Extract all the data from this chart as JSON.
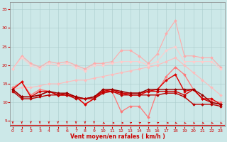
{
  "xlabel": "Vent moyen/en rafales ( km/h )",
  "bg_color": "#cce8e8",
  "grid_color": "#aacccc",
  "x_ticks": [
    0,
    1,
    2,
    3,
    4,
    5,
    6,
    7,
    8,
    9,
    10,
    11,
    12,
    13,
    14,
    15,
    16,
    17,
    18,
    19,
    20,
    21,
    22,
    23
  ],
  "y_ticks": [
    5,
    10,
    15,
    20,
    25,
    30,
    35
  ],
  "ylim": [
    3.5,
    37
  ],
  "xlim": [
    -0.3,
    23.5
  ],
  "series": [
    {
      "color": "#ffaaaa",
      "lw": 0.8,
      "marker": "D",
      "ms": 1.8,
      "data": [
        [
          0,
          19
        ],
        [
          1,
          22.5
        ],
        [
          2,
          20.5
        ],
        [
          3,
          19.5
        ],
        [
          4,
          21
        ],
        [
          5,
          20.5
        ],
        [
          6,
          21
        ],
        [
          7,
          20
        ],
        [
          8,
          19
        ],
        [
          9,
          20.5
        ],
        [
          10,
          20.5
        ],
        [
          11,
          21
        ],
        [
          12,
          24
        ],
        [
          13,
          24
        ],
        [
          14,
          22.5
        ],
        [
          15,
          20.5
        ],
        [
          16,
          23
        ],
        [
          17,
          28.5
        ],
        [
          18,
          32
        ],
        [
          19,
          22.5
        ],
        [
          20,
          22.5
        ],
        [
          21,
          22
        ],
        [
          22,
          22
        ],
        [
          23,
          19.5
        ]
      ]
    },
    {
      "color": "#ffbbbb",
      "lw": 0.8,
      "marker": "D",
      "ms": 1.8,
      "data": [
        [
          0,
          13.5
        ],
        [
          1,
          14
        ],
        [
          2,
          14
        ],
        [
          3,
          14.5
        ],
        [
          4,
          15
        ],
        [
          5,
          15
        ],
        [
          6,
          15.5
        ],
        [
          7,
          16
        ],
        [
          8,
          16
        ],
        [
          9,
          16.5
        ],
        [
          10,
          17
        ],
        [
          11,
          17.5
        ],
        [
          12,
          18
        ],
        [
          13,
          18.5
        ],
        [
          14,
          19
        ],
        [
          15,
          19.5
        ],
        [
          16,
          20
        ],
        [
          17,
          21
        ],
        [
          18,
          22
        ],
        [
          19,
          20
        ],
        [
          20,
          18
        ],
        [
          21,
          16
        ],
        [
          22,
          14
        ],
        [
          23,
          12
        ]
      ]
    },
    {
      "color": "#ffcccc",
      "lw": 0.8,
      "marker": "D",
      "ms": 1.8,
      "data": [
        [
          0,
          19
        ],
        [
          1,
          22
        ],
        [
          2,
          20
        ],
        [
          3,
          19
        ],
        [
          4,
          20.5
        ],
        [
          5,
          20
        ],
        [
          6,
          20.5
        ],
        [
          7,
          19.5
        ],
        [
          8,
          18.5
        ],
        [
          9,
          20
        ],
        [
          10,
          20
        ],
        [
          11,
          20.5
        ],
        [
          12,
          21
        ],
        [
          13,
          21
        ],
        [
          14,
          21
        ],
        [
          15,
          20
        ],
        [
          16,
          21
        ],
        [
          17,
          24
        ],
        [
          18,
          25
        ],
        [
          19,
          21
        ],
        [
          20,
          21
        ],
        [
          21,
          21
        ],
        [
          22,
          21
        ],
        [
          23,
          19
        ]
      ]
    },
    {
      "color": "#ff7777",
      "lw": 0.9,
      "marker": "D",
      "ms": 1.8,
      "data": [
        [
          0,
          14
        ],
        [
          1,
          15.5
        ],
        [
          2,
          12
        ],
        [
          3,
          13.5
        ],
        [
          4,
          13
        ],
        [
          5,
          12
        ],
        [
          6,
          12
        ],
        [
          7,
          11.5
        ],
        [
          8,
          9.5
        ],
        [
          9,
          11
        ],
        [
          10,
          13.5
        ],
        [
          11,
          13
        ],
        [
          12,
          7.5
        ],
        [
          13,
          9
        ],
        [
          14,
          9
        ],
        [
          15,
          6
        ],
        [
          16,
          13
        ],
        [
          17,
          17
        ],
        [
          18,
          19.5
        ],
        [
          19,
          17.5
        ],
        [
          20,
          13.5
        ],
        [
          21,
          11
        ],
        [
          22,
          10.5
        ],
        [
          23,
          10
        ]
      ]
    },
    {
      "color": "#dd0000",
      "lw": 1.0,
      "marker": "D",
      "ms": 1.8,
      "data": [
        [
          0,
          13.5
        ],
        [
          1,
          15.5
        ],
        [
          2,
          11.5
        ],
        [
          3,
          13
        ],
        [
          4,
          13
        ],
        [
          5,
          12
        ],
        [
          6,
          12
        ],
        [
          7,
          11.5
        ],
        [
          8,
          9.5
        ],
        [
          9,
          11
        ],
        [
          10,
          13
        ],
        [
          11,
          13
        ],
        [
          12,
          12.5
        ],
        [
          13,
          12
        ],
        [
          14,
          12
        ],
        [
          15,
          13
        ],
        [
          16,
          13.5
        ],
        [
          17,
          16
        ],
        [
          18,
          17.5
        ],
        [
          19,
          13
        ],
        [
          20,
          13.5
        ],
        [
          21,
          11
        ],
        [
          22,
          11
        ],
        [
          23,
          9.5
        ]
      ]
    },
    {
      "color": "#cc0000",
      "lw": 1.0,
      "marker": "D",
      "ms": 1.8,
      "data": [
        [
          0,
          13.5
        ],
        [
          1,
          11.5
        ],
        [
          2,
          11.5
        ],
        [
          3,
          12
        ],
        [
          4,
          13
        ],
        [
          5,
          12
        ],
        [
          6,
          12.5
        ],
        [
          7,
          11.5
        ],
        [
          8,
          11
        ],
        [
          9,
          11.5
        ],
        [
          10,
          13
        ],
        [
          11,
          13.5
        ],
        [
          12,
          12.5
        ],
        [
          13,
          12.5
        ],
        [
          14,
          12.5
        ],
        [
          15,
          13
        ],
        [
          16,
          13
        ],
        [
          17,
          13
        ],
        [
          18,
          13
        ],
        [
          19,
          12
        ],
        [
          20,
          13.5
        ],
        [
          21,
          11
        ],
        [
          22,
          10
        ],
        [
          23,
          9.5
        ]
      ]
    },
    {
      "color": "#990000",
      "lw": 1.0,
      "marker": "D",
      "ms": 1.8,
      "data": [
        [
          0,
          13.5
        ],
        [
          1,
          11.5
        ],
        [
          2,
          11.5
        ],
        [
          3,
          12
        ],
        [
          4,
          13
        ],
        [
          5,
          12.5
        ],
        [
          6,
          12.5
        ],
        [
          7,
          11.5
        ],
        [
          8,
          11
        ],
        [
          9,
          11.5
        ],
        [
          10,
          13.5
        ],
        [
          11,
          13.5
        ],
        [
          12,
          13
        ],
        [
          13,
          12.5
        ],
        [
          14,
          12.5
        ],
        [
          15,
          13.5
        ],
        [
          16,
          13.5
        ],
        [
          17,
          13.5
        ],
        [
          18,
          13.5
        ],
        [
          19,
          13.5
        ],
        [
          20,
          13.5
        ],
        [
          21,
          12
        ],
        [
          22,
          10
        ],
        [
          23,
          9.5
        ]
      ]
    },
    {
      "color": "#bb0000",
      "lw": 1.0,
      "marker": "D",
      "ms": 1.8,
      "data": [
        [
          0,
          13
        ],
        [
          1,
          11
        ],
        [
          2,
          11
        ],
        [
          3,
          11.5
        ],
        [
          4,
          12
        ],
        [
          5,
          12
        ],
        [
          6,
          12
        ],
        [
          7,
          11
        ],
        [
          8,
          11
        ],
        [
          9,
          11
        ],
        [
          10,
          12.5
        ],
        [
          11,
          13
        ],
        [
          12,
          12
        ],
        [
          13,
          12
        ],
        [
          14,
          12
        ],
        [
          15,
          12
        ],
        [
          16,
          12
        ],
        [
          17,
          12.5
        ],
        [
          18,
          12.5
        ],
        [
          19,
          11.5
        ],
        [
          20,
          9.5
        ],
        [
          21,
          9.5
        ],
        [
          22,
          9.5
        ],
        [
          23,
          9
        ]
      ]
    }
  ],
  "arrow_directions": [
    0,
    0,
    0,
    0,
    0,
    0,
    0,
    0,
    0,
    0,
    45,
    90,
    90,
    135,
    135,
    135,
    135,
    90,
    45,
    45,
    45,
    45,
    45,
    45
  ],
  "arrow_color": "#dd0000"
}
